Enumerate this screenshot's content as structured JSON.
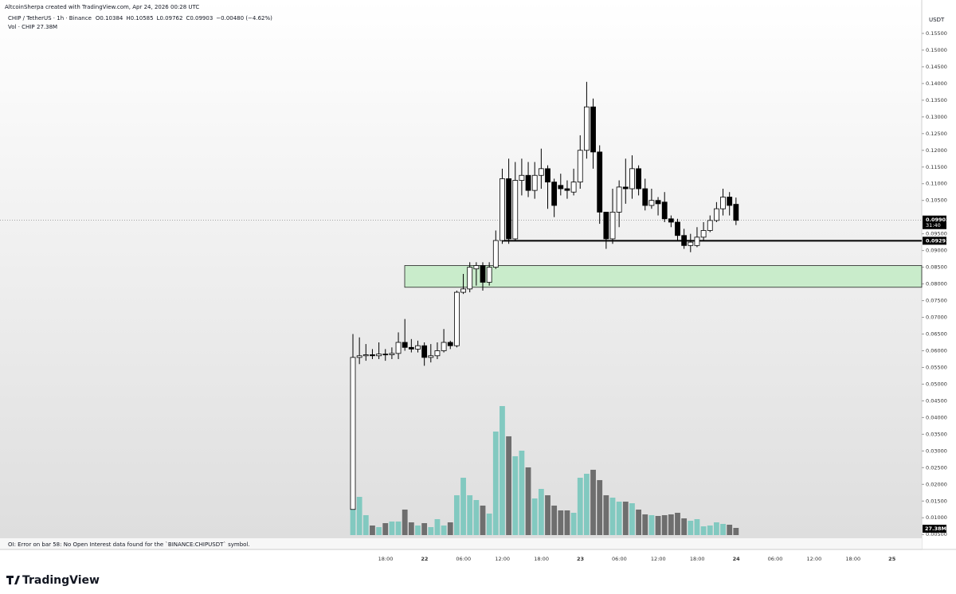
{
  "header": {
    "credit": "AltcoinSherpa created with TradingView.com, Apr 24, 2026 00:28 UTC",
    "symbol": "CHIP / TetherUS · 1h · Binance",
    "ohlc": [
      "O0.10384",
      "H0.10585",
      "L0.09762",
      "C0.09903"
    ],
    "change": "−0.00480 (−4.62%)",
    "volume_title": "Vol · CHIP",
    "volume_value": "27.38M",
    "currency": "USDT",
    "countdown": "31:40"
  },
  "footer": {
    "message": "OI: Error on bar 58: No Open Interest data found for the `BINANCE:CHIPUSDT` symbol.",
    "brand": "TradingView"
  },
  "chart_data": {
    "type": "candlestick",
    "open": [
      0.0125,
      0.058,
      0.0585,
      0.0588,
      0.0585,
      0.059,
      0.0588,
      0.0592,
      0.0625,
      0.061,
      0.0605,
      0.0615,
      0.058,
      0.0585,
      0.06,
      0.0625,
      0.0615,
      0.0775,
      0.0785,
      0.0845,
      0.0855,
      0.0805,
      0.085,
      0.093,
      0.1115,
      0.0935,
      0.111,
      0.1125,
      0.108,
      0.1125,
      0.1145,
      0.1105,
      0.1095,
      0.1085,
      0.1075,
      0.1105,
      0.12,
      0.133,
      0.1195,
      0.1015,
      0.0935,
      0.1015,
      0.109,
      0.1085,
      0.1145,
      0.1085,
      0.1035,
      0.105,
      0.1045,
      0.0995,
      0.0985,
      0.0945,
      0.0915,
      0.0915,
      0.094,
      0.096,
      0.099,
      0.1025,
      0.106,
      0.10384
    ],
    "high": [
      0.065,
      0.064,
      0.062,
      0.0605,
      0.0625,
      0.0605,
      0.061,
      0.0655,
      0.0695,
      0.0635,
      0.063,
      0.0625,
      0.062,
      0.0625,
      0.0665,
      0.063,
      0.078,
      0.083,
      0.0865,
      0.0865,
      0.0865,
      0.0865,
      0.096,
      0.1145,
      0.1175,
      0.1165,
      0.1175,
      0.1165,
      0.1165,
      0.1205,
      0.1155,
      0.1115,
      0.113,
      0.111,
      0.1145,
      0.1245,
      0.1405,
      0.1355,
      0.1215,
      0.1015,
      0.1085,
      0.111,
      0.1175,
      0.1185,
      0.1155,
      0.1115,
      0.1085,
      0.106,
      0.1075,
      0.1005,
      0.0995,
      0.0965,
      0.095,
      0.097,
      0.0985,
      0.1005,
      0.1045,
      0.1085,
      0.1075,
      0.10585
    ],
    "low": [
      0.0125,
      0.056,
      0.057,
      0.0575,
      0.0575,
      0.057,
      0.0575,
      0.0575,
      0.06,
      0.0595,
      0.0595,
      0.0555,
      0.0565,
      0.0575,
      0.0595,
      0.0605,
      0.061,
      0.077,
      0.0775,
      0.0795,
      0.078,
      0.0795,
      0.0845,
      0.092,
      0.092,
      0.093,
      0.1065,
      0.106,
      0.1055,
      0.1085,
      0.1025,
      0.1,
      0.1065,
      0.1055,
      0.1065,
      0.1085,
      0.1175,
      0.1145,
      0.098,
      0.0905,
      0.092,
      0.097,
      0.104,
      0.1055,
      0.1065,
      0.102,
      0.1025,
      0.1005,
      0.0985,
      0.097,
      0.093,
      0.0905,
      0.0895,
      0.091,
      0.093,
      0.0955,
      0.0985,
      0.1005,
      0.1005,
      0.09762
    ],
    "close": [
      0.058,
      0.0585,
      0.0588,
      0.0585,
      0.059,
      0.0588,
      0.0592,
      0.0625,
      0.061,
      0.0605,
      0.0615,
      0.058,
      0.0585,
      0.06,
      0.0625,
      0.0615,
      0.0775,
      0.0785,
      0.085,
      0.0855,
      0.0805,
      0.085,
      0.093,
      0.1115,
      0.0935,
      0.111,
      0.1125,
      0.108,
      0.1125,
      0.1145,
      0.1105,
      0.1035,
      0.1085,
      0.108,
      0.1105,
      0.12,
      0.133,
      0.1195,
      0.1015,
      0.0935,
      0.1015,
      0.109,
      0.1085,
      0.1145,
      0.1085,
      0.1035,
      0.105,
      0.104,
      0.0995,
      0.0985,
      0.0945,
      0.0915,
      0.0925,
      0.094,
      0.096,
      0.099,
      0.1025,
      0.106,
      0.1035,
      0.09903
    ],
    "volume": [
      97.3,
      145.9,
      76,
      36.5,
      30.4,
      45.6,
      51.7,
      51.7,
      97.3,
      48.6,
      36.5,
      45.6,
      30.4,
      60.8,
      36.5,
      48.6,
      152,
      218.9,
      152,
      133.8,
      112.5,
      82.1,
      395.2,
      492.5,
      377,
      301,
      322.2,
      258.4,
      139.8,
      176.3,
      152,
      112.5,
      94.2,
      94.2,
      85.1,
      218.9,
      234.1,
      249.3,
      209.8,
      152,
      142.9,
      127.7,
      127.7,
      121.6,
      97.3,
      79,
      76,
      73,
      76,
      79,
      85.1,
      63.8,
      54.7,
      60.8,
      33.4,
      36.5,
      48.6,
      42.6,
      39.5,
      27.38
    ],
    "up_color": "#ffffff",
    "down_color": "#000000",
    "volume_up_color": "#82c9c0",
    "volume_down_color": "#6e6e6e",
    "last_price": 0.09903,
    "level": 0.09293,
    "zone": [
      0.079,
      0.0855
    ],
    "zone_color": "#c9eccb",
    "ylim": [
      0.0041,
      0.165
    ],
    "yticks": [
      {
        "value": 0.155,
        "label": "0.15500"
      },
      {
        "value": 0.15,
        "label": "0.15000"
      },
      {
        "value": 0.145,
        "label": "0.14500"
      },
      {
        "value": 0.14,
        "label": "0.14000"
      },
      {
        "value": 0.135,
        "label": "0.13500"
      },
      {
        "value": 0.13,
        "label": "0.13000"
      },
      {
        "value": 0.125,
        "label": "0.12500"
      },
      {
        "value": 0.12,
        "label": "0.12000"
      },
      {
        "value": 0.115,
        "label": "0.11500"
      },
      {
        "value": 0.11,
        "label": "0.11000"
      },
      {
        "value": 0.105,
        "label": "0.10500"
      },
      {
        "value": 0.095,
        "label": "0.09500"
      },
      {
        "value": 0.09,
        "label": "0.09000"
      },
      {
        "value": 0.085,
        "label": "0.08500"
      },
      {
        "value": 0.08,
        "label": "0.08000"
      },
      {
        "value": 0.075,
        "label": "0.07500"
      },
      {
        "value": 0.07,
        "label": "0.07000"
      },
      {
        "value": 0.065,
        "label": "0.06500"
      },
      {
        "value": 0.06,
        "label": "0.06000"
      },
      {
        "value": 0.055,
        "label": "0.05500"
      },
      {
        "value": 0.05,
        "label": "0.05000"
      },
      {
        "value": 0.045,
        "label": "0.04500"
      },
      {
        "value": 0.04,
        "label": "0.04000"
      },
      {
        "value": 0.035,
        "label": "0.03500"
      },
      {
        "value": 0.03,
        "label": "0.03000"
      },
      {
        "value": 0.025,
        "label": "0.02500"
      },
      {
        "value": 0.02,
        "label": "0.02000"
      },
      {
        "value": 0.015,
        "label": "0.01500"
      },
      {
        "value": 0.01,
        "label": "0.01000"
      },
      {
        "value": 0.005,
        "label": "0.00500"
      }
    ],
    "xticks": [
      "18:00",
      "22",
      "06:00",
      "12:00",
      "18:00",
      "23",
      "06:00",
      "12:00",
      "18:00",
      "24",
      "06:00",
      "12:00",
      "18:00",
      "25"
    ]
  }
}
